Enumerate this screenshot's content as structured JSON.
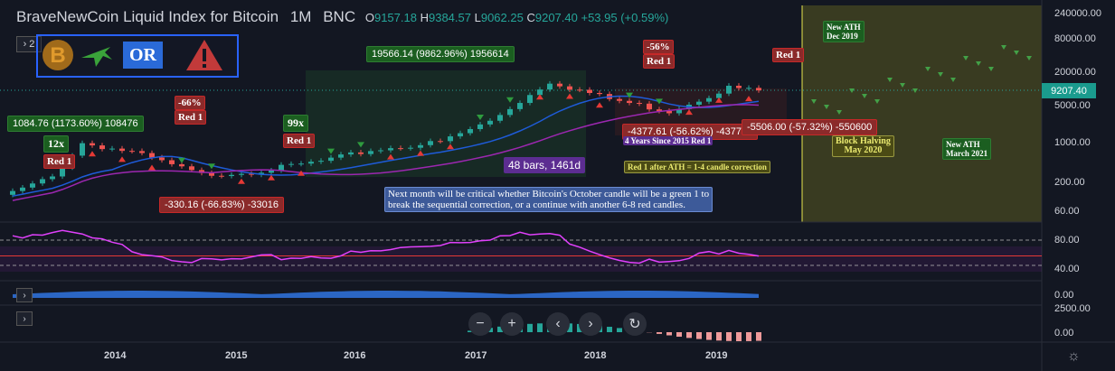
{
  "header": {
    "title": "BraveNewCoin Liquid Index for Bitcoin",
    "interval": "1M",
    "exchange": "BNC",
    "o_label": "O",
    "o": "9157.18",
    "h_label": "H",
    "h": "9384.57",
    "l_label": "L",
    "l": "9062.25",
    "c_label": "C",
    "c": "9207.40",
    "change": "+53.95 (+0.59%)",
    "indicator_count": "2"
  },
  "logo": {
    "or_text": "OR"
  },
  "annotations": {
    "a1084": "1084.76 (1173.60%) 108476",
    "x12": "12x",
    "red1_a": "Red 1",
    "pct66": "-66%",
    "red1_b": "Red 1",
    "drop330": "-330.16 (-66.83%) -33016",
    "x99": "99x",
    "red1_c": "Red 1",
    "rise19566": "19566.14 (9862.96%) 1956614",
    "pct56": "-56%",
    "red1_d": "Red 1",
    "drop4377": "-4377.61 (-56.62%) -437761",
    "four_years": "4 Years Since 2015 Red 1",
    "bars48": "48 bars, 1461d",
    "red1_e": "Red 1",
    "drop5506": "-5506.00 (-57.32%) -550600",
    "red1_after_ath": "Red 1 after ATH = 1-4 candle correction",
    "block_halving_1": "Block Halving",
    "block_halving_2": "May 2020",
    "new_ath_dec_1": "New ATH",
    "new_ath_dec_2": "Dec 2019",
    "new_ath_mar_1": "New ATH",
    "new_ath_mar_2": "March 2021",
    "next_month_1": "Next month will be critical whether Bitcoin's October candle will be a green 1 to",
    "next_month_2": "break the sequential correction, or a continue with another 6-8 red candles."
  },
  "price_axis": {
    "ticks": [
      "240000.00",
      "80000.00",
      "20000.00",
      "5000.00",
      "1000.00",
      "200.00",
      "60.00"
    ],
    "current": "9207.40"
  },
  "rsi_axis": {
    "ticks": [
      "80.00",
      "40.00"
    ]
  },
  "pane3_axis": {
    "ticks": [
      "0.00"
    ]
  },
  "pane4_axis": {
    "ticks": [
      "2500.00",
      "0.00"
    ]
  },
  "x_axis": {
    "ticks": [
      "2014",
      "2015",
      "2016",
      "2017",
      "2018",
      "2019"
    ]
  },
  "colors": {
    "up": "#26a69a",
    "down": "#ef5350",
    "bg": "#131722",
    "rsi": "#e040fb",
    "ma_blue": "#1e5bd8",
    "ma_purple": "#9c27b0"
  },
  "chart_data": [
    {
      "type": "line",
      "title": "BraveNewCoin Liquid Index for Bitcoin",
      "interval": "1M",
      "scale": "log",
      "ylim": [
        40,
        300000
      ],
      "x": [
        "2013-06",
        "2013-10",
        "2014-01",
        "2014-06",
        "2015-01",
        "2015-06",
        "2016-01",
        "2016-06",
        "2017-01",
        "2017-06",
        "2017-12",
        "2018-06",
        "2018-12",
        "2019-06",
        "2019-09"
      ],
      "series": [
        {
          "name": "Close",
          "values": [
            100,
            200,
            900,
            600,
            220,
            250,
            400,
            650,
            950,
            2400,
            14000,
            6400,
            3700,
            10800,
            9207.4
          ]
        }
      ]
    },
    {
      "type": "line",
      "ylim": [
        20,
        100
      ],
      "x": [
        "2013-06",
        "2013-12",
        "2014-06",
        "2015-01",
        "2015-06",
        "2016-01",
        "2016-06",
        "2017-01",
        "2017-06",
        "2017-12",
        "2018-06",
        "2018-12",
        "2019-06",
        "2019-09"
      ],
      "series": [
        {
          "name": "RSI",
          "values": [
            88,
            90,
            65,
            45,
            50,
            55,
            60,
            75,
            85,
            90,
            55,
            42,
            68,
            58
          ]
        }
      ]
    }
  ]
}
